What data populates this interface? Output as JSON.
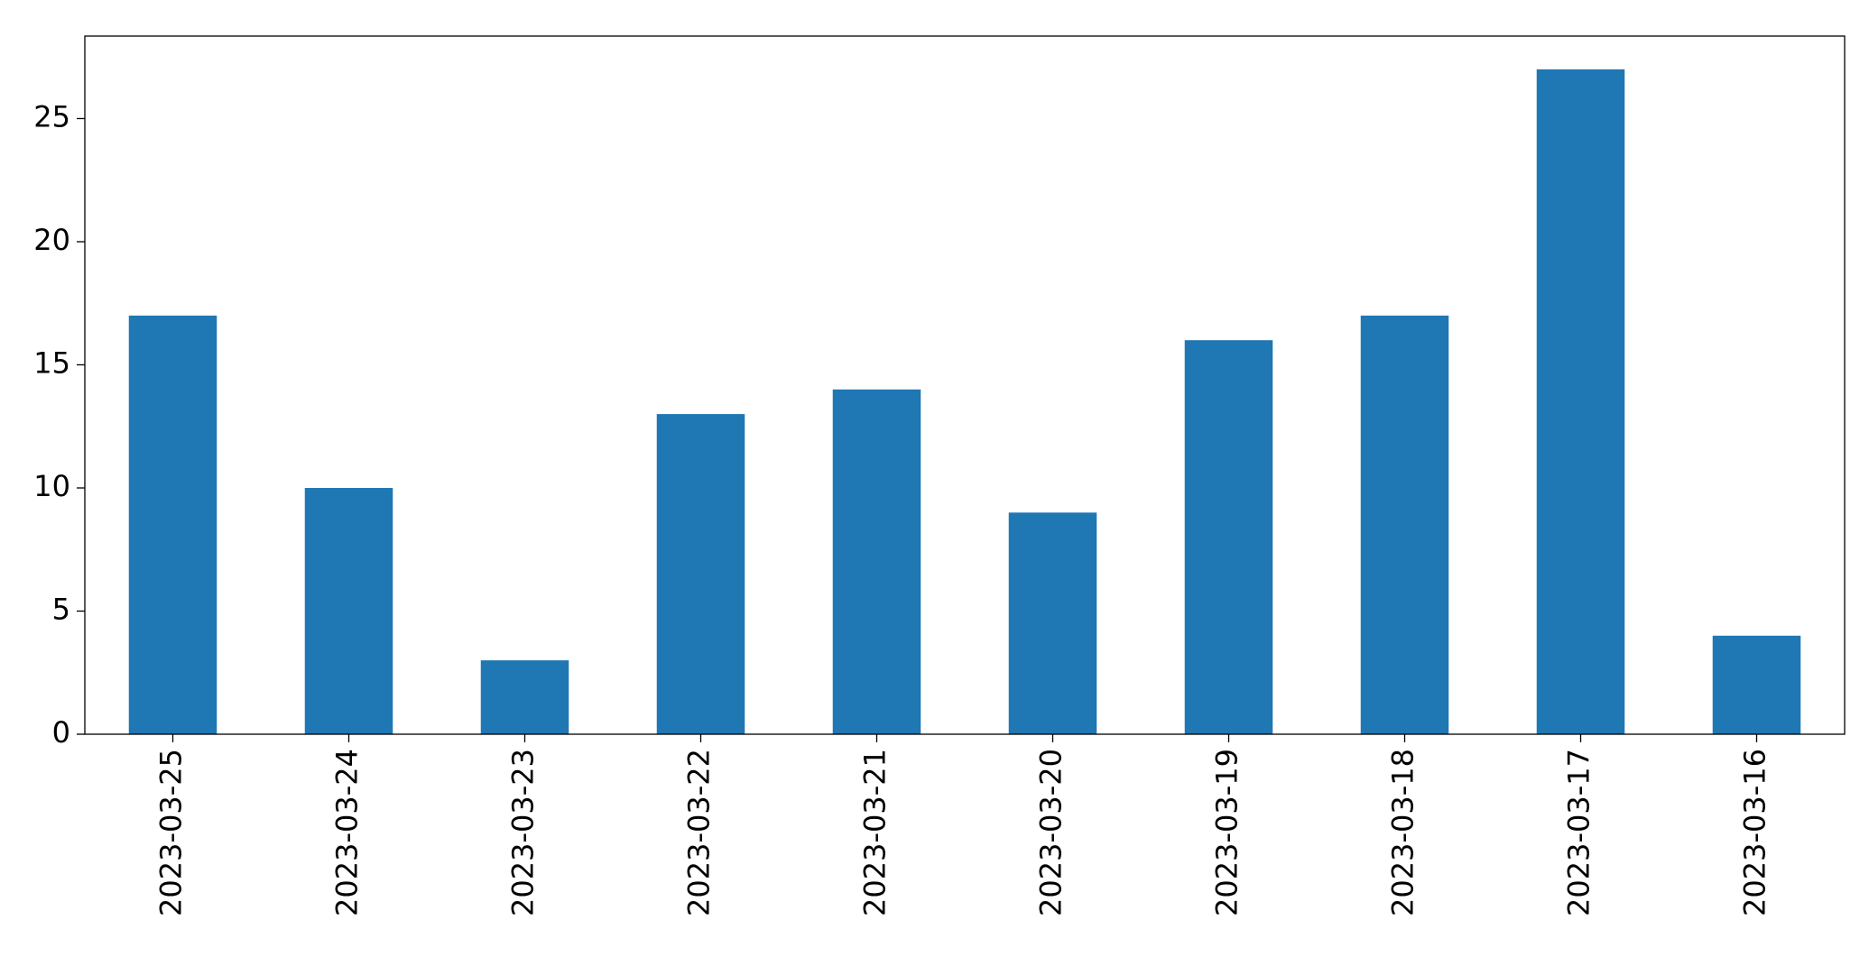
{
  "chart_data": {
    "type": "bar",
    "categories": [
      "2023-03-25",
      "2023-03-24",
      "2023-03-23",
      "2023-03-22",
      "2023-03-21",
      "2023-03-20",
      "2023-03-19",
      "2023-03-18",
      "2023-03-17",
      "2023-03-16"
    ],
    "values": [
      17,
      10,
      3,
      13,
      14,
      9,
      16,
      17,
      27,
      4
    ],
    "color": "#1f77b4",
    "ylim": [
      0,
      28.35
    ],
    "yticks": [
      0,
      5,
      10,
      15,
      20,
      25
    ],
    "grid": false
  }
}
